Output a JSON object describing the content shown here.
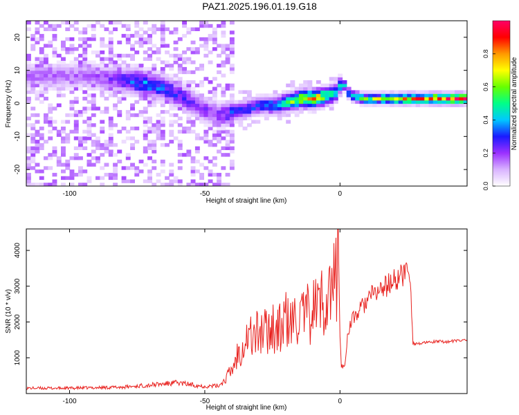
{
  "page": {
    "title": "PAZ1.2025.196.01.19.G18"
  },
  "chart_data": [
    {
      "type": "heatmap",
      "xlabel": "Height of straight line (km)",
      "ylabel": "Frequency (Hz)",
      "xlim": [
        -116,
        47
      ],
      "ylim": [
        -25,
        25
      ],
      "xticks": [
        -100,
        -50,
        0
      ],
      "yticks": [
        -20,
        -10,
        0,
        10,
        20
      ],
      "colorbar": {
        "label": "Normalized spectral amplitude",
        "range": [
          0,
          1
        ],
        "ticks": [
          0.0,
          0.2,
          0.4,
          0.6,
          0.8
        ],
        "colors": [
          "#ffffff",
          "#d9b3ff",
          "#9b30ff",
          "#1a1aff",
          "#00c8ff",
          "#00ff88",
          "#66ff00",
          "#ffff00",
          "#ff9900",
          "#ff0000",
          "#ff0066"
        ]
      },
      "ridge": {
        "description_points_x": [
          -95,
          -85,
          -75,
          -65,
          -58,
          -52,
          -45,
          -40,
          -35,
          -30,
          -25,
          -20,
          -15,
          -10,
          -5,
          -2,
          0,
          3,
          8,
          15,
          25,
          35,
          46
        ],
        "frequency": [
          8,
          7,
          6,
          4,
          1,
          -2,
          -4,
          -3,
          -2,
          -1,
          -1,
          0,
          1,
          1,
          2,
          3,
          6,
          2,
          1,
          1,
          1,
          1,
          1
        ],
        "amplitude": [
          0.15,
          0.2,
          0.35,
          0.3,
          0.25,
          0.2,
          0.2,
          0.3,
          0.3,
          0.3,
          0.35,
          0.5,
          0.7,
          0.75,
          0.55,
          0.4,
          0.35,
          0.4,
          0.55,
          0.6,
          0.75,
          0.9,
          0.95
        ]
      }
    },
    {
      "type": "line",
      "xlabel": "Height of straight line (km)",
      "ylabel": "SNR (10 * v/v)",
      "xlim": [
        -116,
        47
      ],
      "ylim": [
        0,
        4600
      ],
      "xticks": [
        -100,
        -50,
        0
      ],
      "yticks": [
        1000,
        2000,
        3000,
        4000
      ],
      "series": [
        {
          "color": "#e8211e",
          "x": [
            -116,
            -100,
            -80,
            -60,
            -55,
            -50,
            -45,
            -42,
            -40,
            -38,
            -36,
            -34,
            -32,
            -30,
            -28,
            -26,
            -25,
            -24,
            -22,
            -20,
            -18,
            -16,
            -14,
            -12,
            -10,
            -8,
            -6,
            -4,
            -2,
            -1,
            -0.5,
            0,
            0.5,
            1,
            2,
            3,
            5,
            7,
            9,
            11,
            13,
            15,
            17,
            19,
            21,
            23,
            24,
            25,
            26,
            27,
            30,
            35,
            40,
            47
          ],
          "y": [
            150,
            150,
            180,
            300,
            250,
            200,
            220,
            400,
            600,
            1000,
            1300,
            1500,
            1450,
            1600,
            1550,
            1700,
            1800,
            1600,
            1650,
            1900,
            1700,
            2000,
            1900,
            2000,
            2200,
            2300,
            2400,
            2600,
            2800,
            3200,
            4500,
            1500,
            800,
            700,
            900,
            1800,
            2100,
            2300,
            2500,
            2700,
            2800,
            2900,
            3000,
            3100,
            3200,
            3300,
            3400,
            3500,
            3300,
            1400,
            1400,
            1450,
            1450,
            1500
          ]
        }
      ]
    }
  ]
}
